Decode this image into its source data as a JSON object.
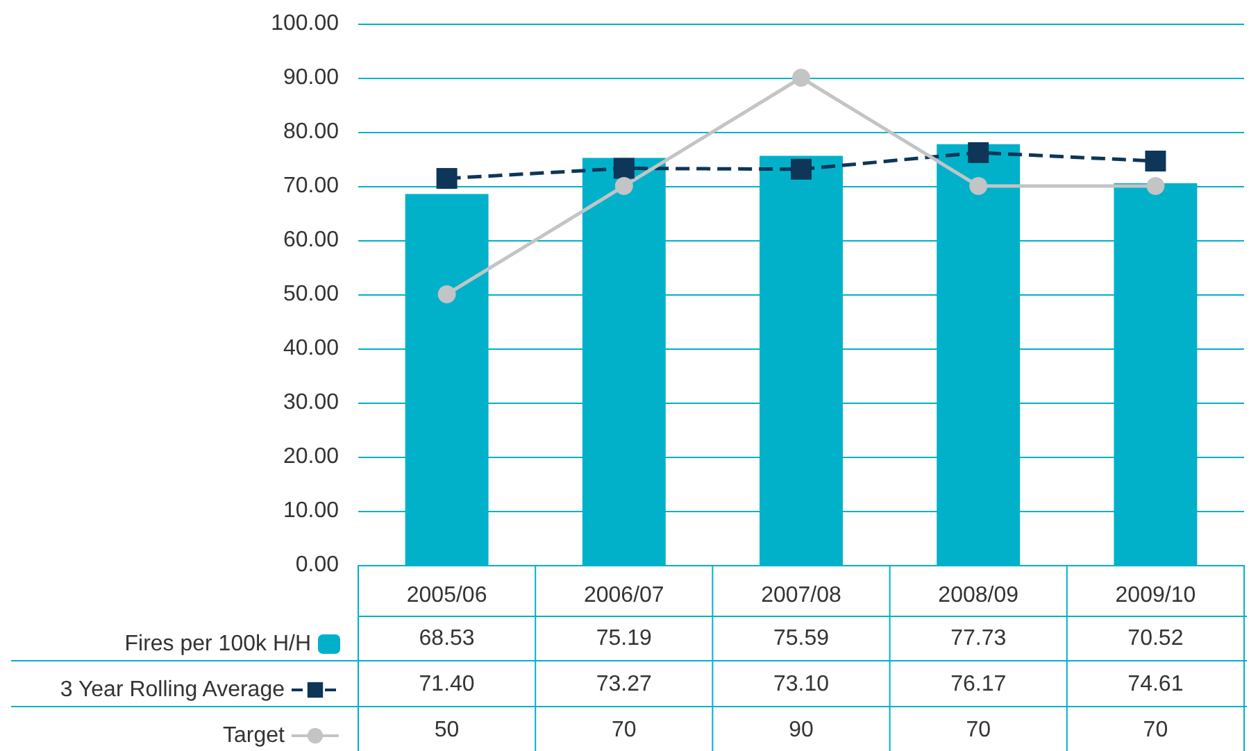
{
  "chart_data": {
    "type": "bar",
    "categories": [
      "2005/06",
      "2006/07",
      "2007/08",
      "2008/09",
      "2009/10"
    ],
    "series": [
      {
        "name": "Fires per 100k H/H",
        "color": "#00b1c9",
        "values": [
          68.53,
          75.19,
          75.59,
          77.73,
          70.52
        ],
        "value_labels": [
          "68.53",
          "75.19",
          "75.59",
          "77.73",
          "70.52"
        ]
      },
      {
        "name": "3 Year Rolling Average",
        "type": "line",
        "color": "#0d3658",
        "marker": "square",
        "line_style": "dashed",
        "values": [
          71.4,
          73.27,
          73.1,
          76.17,
          74.61
        ],
        "value_labels": [
          "71.40",
          "73.27",
          "73.10",
          "76.17",
          "74.61"
        ]
      },
      {
        "name": "Target",
        "type": "line",
        "color": "#c2c4c6",
        "marker": "circle",
        "line_style": "solid",
        "values": [
          50,
          70,
          90,
          70,
          70
        ],
        "value_labels": [
          "50",
          "70",
          "90",
          "70",
          "70"
        ]
      }
    ],
    "ylim": [
      0,
      100
    ],
    "yticks": [
      {
        "value": 0,
        "label": "0.00"
      },
      {
        "value": 10,
        "label": "10.00"
      },
      {
        "value": 20,
        "label": "20.00"
      },
      {
        "value": 30,
        "label": "30.00"
      },
      {
        "value": 40,
        "label": "40.00"
      },
      {
        "value": 50,
        "label": "50.00"
      },
      {
        "value": 60,
        "label": "60.00"
      },
      {
        "value": 70,
        "label": "70.00"
      },
      {
        "value": 80,
        "label": "80.00"
      },
      {
        "value": 90,
        "label": "90.00"
      },
      {
        "value": 100,
        "label": "100.00"
      }
    ],
    "grid": "y",
    "legend": "bottom"
  }
}
